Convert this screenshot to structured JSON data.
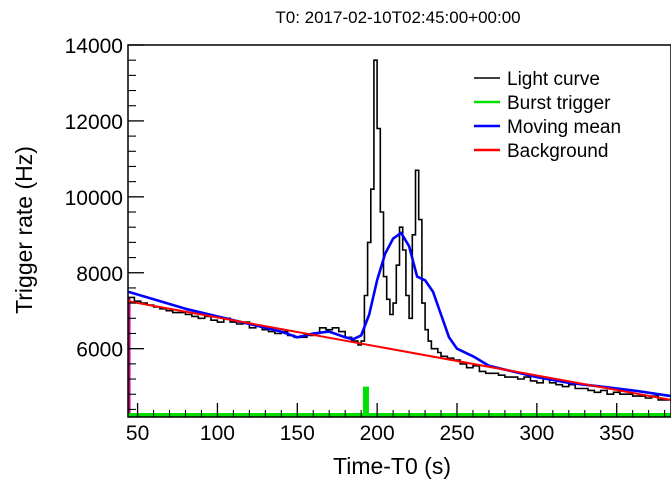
{
  "chart_data": {
    "type": "line",
    "title": "T0: 2017-02-10T02:45:00+00:00",
    "xlabel": "Time-T0 (s)",
    "ylabel": "Trigger rate (Hz)",
    "xlim": [
      44,
      384
    ],
    "ylim": [
      4200,
      14000
    ],
    "xticks": [
      50,
      100,
      150,
      200,
      250,
      300,
      350
    ],
    "yticks": [
      6000,
      8000,
      10000,
      12000,
      14000
    ],
    "legend_position": "top-right",
    "grid": false,
    "series": [
      {
        "name": "Light curve",
        "color": "#000000",
        "style": "step",
        "x": [
          44,
          48,
          52,
          56,
          60,
          64,
          68,
          72,
          76,
          80,
          84,
          88,
          92,
          96,
          100,
          104,
          108,
          112,
          116,
          120,
          124,
          128,
          132,
          136,
          140,
          144,
          148,
          152,
          156,
          160,
          164,
          168,
          172,
          176,
          180,
          184,
          188,
          190,
          192,
          194,
          196,
          198,
          200,
          202,
          204,
          206,
          208,
          210,
          212,
          214,
          216,
          218,
          220,
          222,
          224,
          226,
          228,
          230,
          232,
          234,
          236,
          238,
          240,
          244,
          248,
          252,
          256,
          260,
          264,
          268,
          272,
          276,
          280,
          284,
          288,
          292,
          296,
          300,
          304,
          308,
          312,
          316,
          320,
          324,
          328,
          332,
          336,
          340,
          344,
          348,
          352,
          356,
          360,
          364,
          368,
          372,
          376,
          380,
          384
        ],
        "y": [
          7350,
          7250,
          7200,
          7150,
          7100,
          7050,
          7000,
          6950,
          6950,
          6900,
          6850,
          6800,
          6850,
          6750,
          6700,
          6800,
          6700,
          6650,
          6700,
          6550,
          6600,
          6500,
          6450,
          6400,
          6450,
          6350,
          6300,
          6300,
          6350,
          6400,
          6550,
          6500,
          6550,
          6450,
          6300,
          6200,
          6100,
          6200,
          7400,
          8800,
          10200,
          13600,
          11800,
          9600,
          7900,
          7300,
          6900,
          7200,
          8200,
          9200,
          8600,
          7400,
          6800,
          9000,
          10700,
          9400,
          7200,
          6500,
          6200,
          6000,
          6000,
          5900,
          5800,
          5750,
          5700,
          5600,
          5500,
          5550,
          5400,
          5350,
          5350,
          5300,
          5250,
          5250,
          5200,
          5250,
          5150,
          5100,
          5200,
          5100,
          5050,
          5000,
          5050,
          4950,
          4950,
          4900,
          4850,
          4900,
          4800,
          4850,
          4800,
          4800,
          4750,
          4750,
          4700,
          4750,
          4650,
          4650,
          4650
        ]
      },
      {
        "name": "Burst trigger",
        "color": "#00e000",
        "style": "marker",
        "x": [
          193
        ],
        "y": [
          5000
        ],
        "baseline": [
          4200
        ]
      },
      {
        "name": "Moving mean",
        "color": "#0000ff",
        "style": "line",
        "x": [
          44,
          60,
          80,
          100,
          120,
          140,
          150,
          160,
          170,
          180,
          185,
          190,
          195,
          200,
          205,
          210,
          215,
          220,
          225,
          230,
          235,
          240,
          245,
          250,
          260,
          270,
          280,
          290,
          300,
          320,
          340,
          360,
          384
        ],
        "y": [
          7500,
          7300,
          7050,
          6850,
          6650,
          6450,
          6300,
          6400,
          6450,
          6300,
          6250,
          6350,
          6900,
          7800,
          8500,
          8900,
          9050,
          8700,
          7900,
          7800,
          7500,
          6900,
          6300,
          6000,
          5800,
          5550,
          5450,
          5350,
          5250,
          5100,
          5000,
          4900,
          4750
        ]
      },
      {
        "name": "Background",
        "color": "#ff0000",
        "style": "line",
        "x": [
          44,
          384
        ],
        "y": [
          7250,
          4650
        ]
      }
    ]
  }
}
